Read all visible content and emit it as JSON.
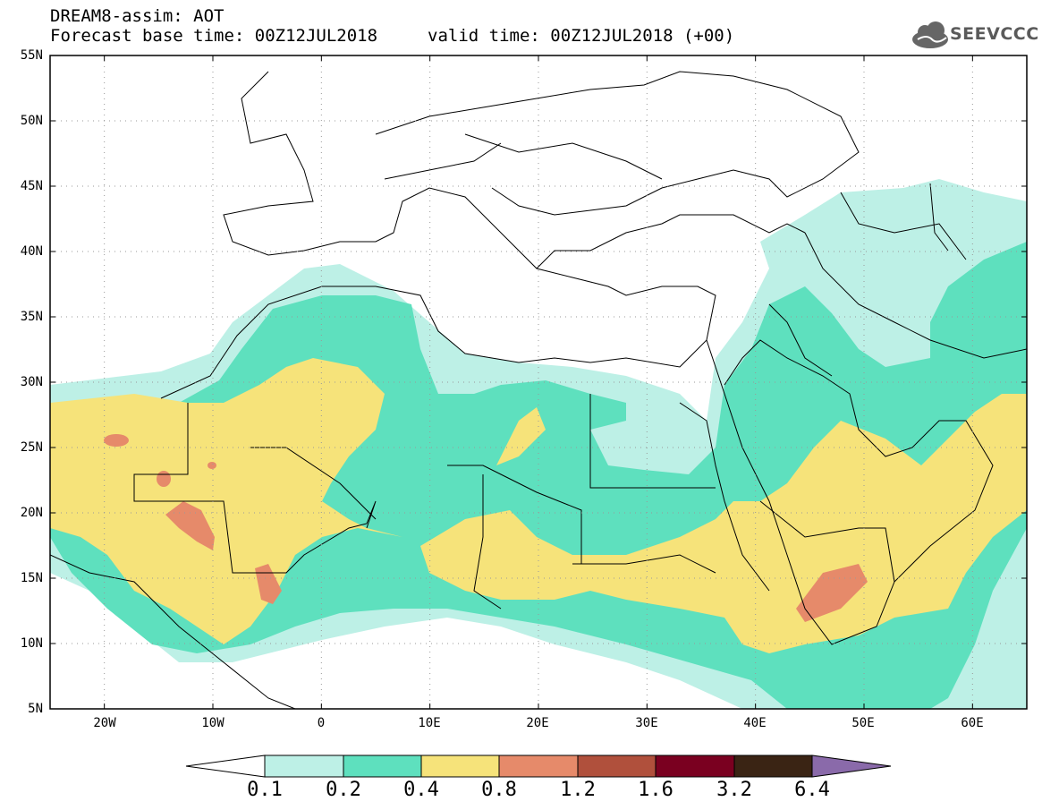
{
  "header": {
    "title": "DREAM8-assim: AOT",
    "base_time": "Forecast base time: 00Z12JUL2018",
    "valid_time": "valid time: 00Z12JUL2018 (+00)",
    "logo_text": "SEEVCCC"
  },
  "map": {
    "variable": "AOT",
    "lon_range": [
      -25,
      65
    ],
    "lat_range": [
      5,
      55
    ],
    "lat_labels": [
      "55N",
      "50N",
      "45N",
      "40N",
      "35N",
      "30N",
      "25N",
      "20N",
      "15N",
      "10N",
      "5N"
    ],
    "lon_labels": [
      "20W",
      "10W",
      "0",
      "10E",
      "20E",
      "30E",
      "40E",
      "50E",
      "60E"
    ]
  },
  "colorbar": {
    "labels": [
      "0.1",
      "0.2",
      "0.4",
      "0.8",
      "1.2",
      "1.6",
      "3.2",
      "6.4"
    ],
    "colors": [
      "#bdf0e6",
      "#5ee0be",
      "#f6e37a",
      "#e68a6a",
      "#b0503c",
      "#7a0020",
      "#3a2414",
      "#8a6aaa"
    ],
    "under_color": "#ffffff"
  }
}
